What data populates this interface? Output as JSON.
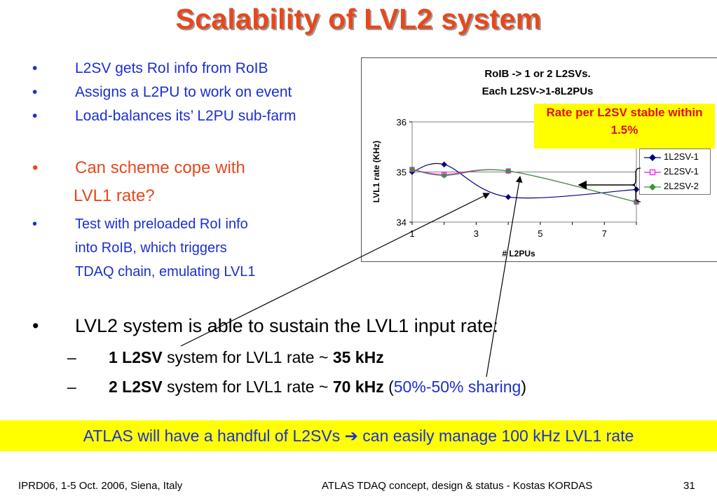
{
  "title": "Scalability of LVL2 system",
  "bullets_top": [
    "L2SV gets RoI info from RoIB",
    "Assigns a L2PU to work on event",
    "Load-balances its’ L2PU sub-farm"
  ],
  "question_line1": "Can scheme cope with",
  "question_line2": "LVL1 rate?",
  "test_lines": [
    "Test with preloaded RoI info",
    "into RoIB, which triggers",
    "TDAQ chain, emulating LVL1"
  ],
  "bullet_char": "•",
  "dash_char": "–",
  "main_bullet": "LVL2 system is able to sustain the LVL1 input rate:",
  "sub1": {
    "bold": "1 L2SV",
    "text": " system for LVL1 rate ~ ",
    "value": "35 kHz"
  },
  "sub2": {
    "bold": "2 L2SV",
    "text": " system for LVL1 rate ~ ",
    "value": "70 kHz",
    "paren_open": " (",
    "sharing": "50%-50% sharing",
    "paren_close": ")"
  },
  "banner": {
    "left": "ATLAS will have a handful of L2SVs",
    "arrow": "➔",
    "right": "can easily manage 100 kHz LVL1 rate"
  },
  "callout": "Rate per L2SV stable within 1.5%",
  "footer": {
    "left": "IPRD06, 1-5 Oct. 2006, Siena, Italy",
    "center": "ATLAS TDAQ concept, design & status - Kostas KORDAS",
    "page": "31"
  },
  "colors": {
    "title": "#e8471c",
    "bullet_blue": "#1a2fd0",
    "highlight": "#ffff00",
    "series_1l2sv1": "#000080",
    "series_2l2sv1": "#ff00ff",
    "series_2l2sv2": "#339933"
  },
  "chart_data": {
    "type": "line",
    "title_line1": "RoIB -> 1 or 2 L2SVs.",
    "title_line2": "Each L2SV->1-8L2PUs",
    "xlabel": "# L2PUs",
    "ylabel": "LVL1 rate (KHz)",
    "xlim": [
      1,
      8
    ],
    "ylim": [
      34,
      36
    ],
    "xticks": [
      1,
      3,
      5,
      7
    ],
    "yticks": [
      34,
      35,
      36
    ],
    "grid": "horizontal",
    "legend_position": "right",
    "series": [
      {
        "name": "1L2SV-1",
        "marker": "diamond",
        "color": "#000080",
        "x": [
          1,
          2,
          4,
          8
        ],
        "y": [
          35.0,
          35.15,
          34.5,
          34.65
        ]
      },
      {
        "name": "2L2SV-1",
        "marker": "square",
        "color": "#ff00ff",
        "x": [
          1,
          2,
          4,
          8
        ],
        "y": [
          35.05,
          34.95,
          35.02,
          34.4
        ]
      },
      {
        "name": "2L2SV-2",
        "marker": "diamond",
        "color": "#339933",
        "x": [
          1,
          2,
          4,
          8
        ],
        "y": [
          35.05,
          34.93,
          35.02,
          34.4
        ]
      }
    ]
  }
}
